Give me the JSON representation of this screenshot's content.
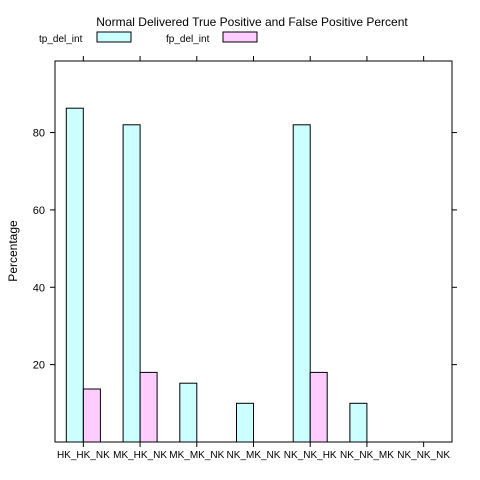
{
  "chart_data": {
    "type": "bar",
    "title": "Normal Delivered True Positive and False Positive Percent",
    "xlabel": "",
    "ylabel": "Percentage",
    "categories": [
      "HK_HK_NK",
      "MK_HK_NK",
      "MK_MK_NK",
      "NK_MK_NK",
      "NK_NK_HK",
      "NK_NK_MK",
      "NK_NK_NK"
    ],
    "series": [
      {
        "name": "tp_del_int",
        "color": "#ccffff",
        "values": [
          86.3,
          82.0,
          15.2,
          10.0,
          82.0,
          10.0,
          0
        ]
      },
      {
        "name": "fp_del_int",
        "color": "#ffccff",
        "values": [
          13.7,
          18.0,
          0,
          0,
          18.0,
          0,
          0
        ]
      }
    ],
    "ylim": [
      0,
      98.5
    ],
    "yticks": [
      20,
      40,
      60,
      80
    ],
    "grid": false,
    "legend_position": "top"
  }
}
